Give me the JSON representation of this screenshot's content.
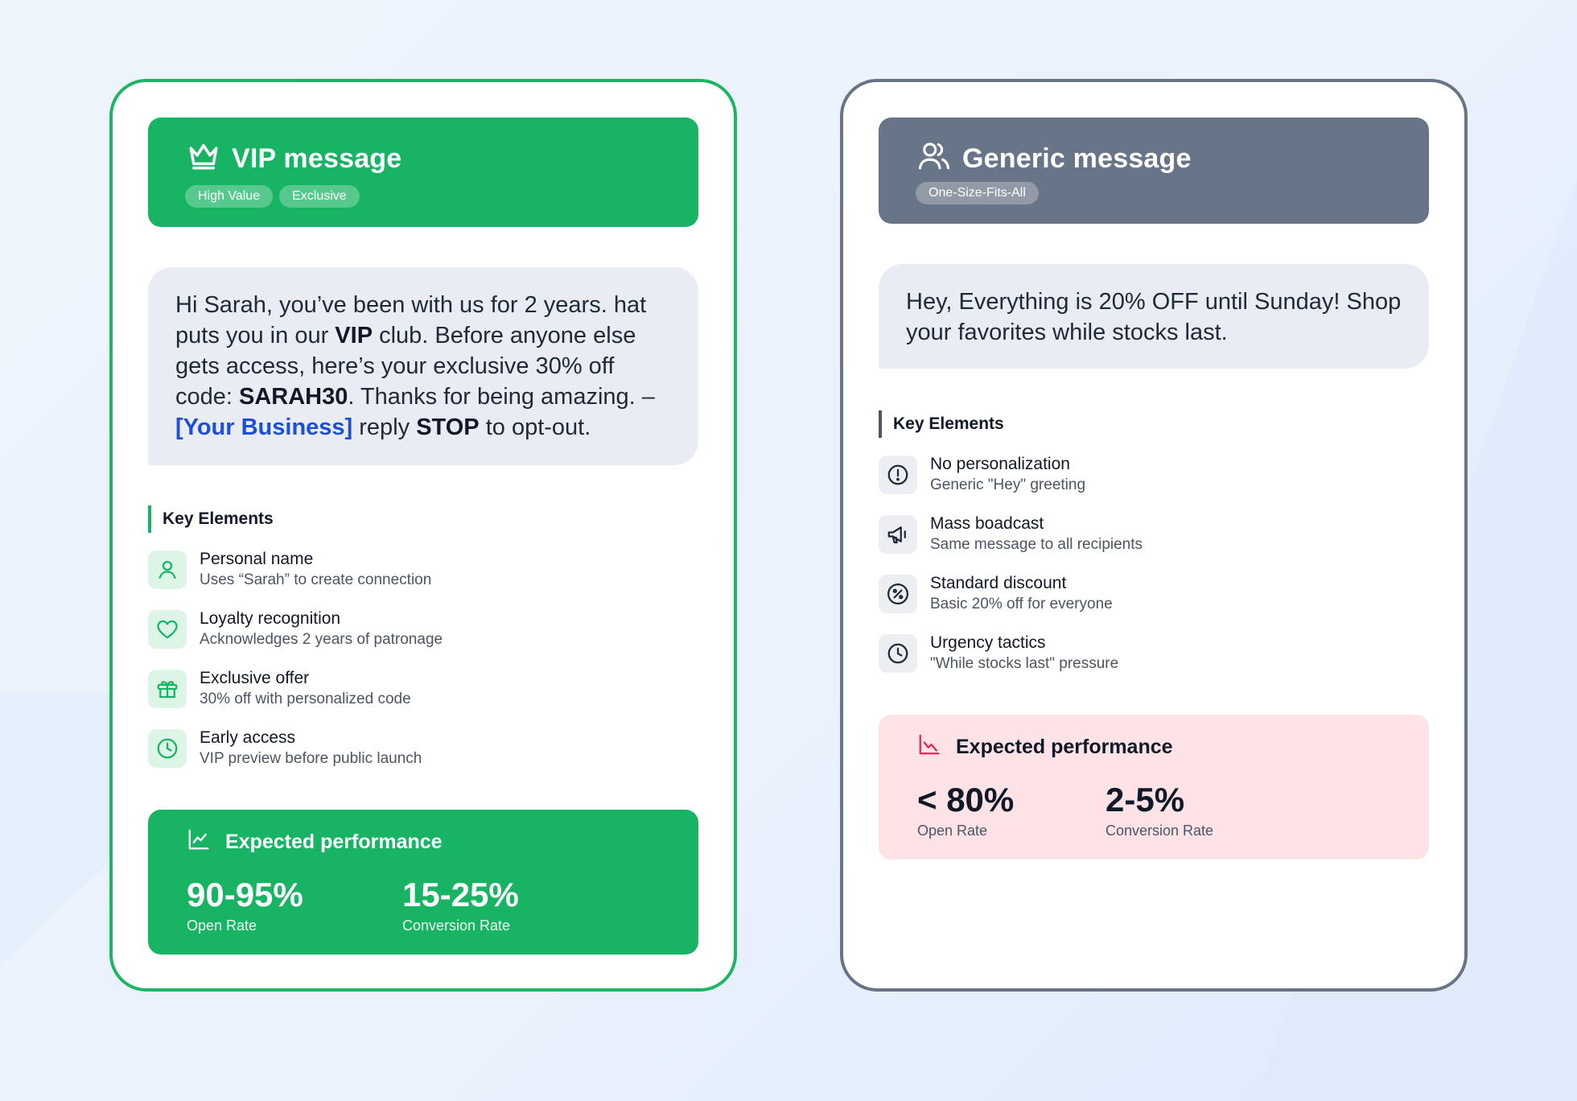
{
  "vip": {
    "title": "VIP message",
    "badges": [
      "High Value",
      "Exclusive"
    ],
    "message": {
      "p1": "Hi Sarah, you’ve been with us for 2 years. hat puts you in our ",
      "vip": "VIP",
      "p2": " club. Before anyone else gets access, here’s your exclusive 30% off code: ",
      "code": "SARAH30",
      "p3": ". Thanks for being amazing. – ",
      "business": "[Your Business]",
      "p4": " reply ",
      "stop": "STOP",
      "p5": " to opt-out."
    },
    "key_heading": "Key Elements",
    "elements": [
      {
        "title": "Personal name",
        "desc": "Uses “Sarah” to create connection",
        "icon": "user-icon"
      },
      {
        "title": "Loyalty recognition",
        "desc": "Acknowledges 2 years of patronage",
        "icon": "heart-icon"
      },
      {
        "title": "Exclusive offer",
        "desc": "30% off with personalized code",
        "icon": "gift-icon"
      },
      {
        "title": "Early access",
        "desc": "VIP preview before public launch",
        "icon": "clock-icon"
      }
    ],
    "performance": {
      "title": "Expected performance",
      "stats": [
        {
          "value": "90-95%",
          "label": "Open Rate"
        },
        {
          "value": "15-25%",
          "label": "Conversion Rate"
        }
      ]
    },
    "accent": "#18b463"
  },
  "generic": {
    "title": "Generic message",
    "badges": [
      "One-Size-Fits-All"
    ],
    "message": "Hey, Everything is 20% OFF until Sunday! Shop your favorites while stocks last.",
    "key_heading": "Key Elements",
    "elements": [
      {
        "title": "No personalization",
        "desc": "Generic \"Hey\" greeting",
        "icon": "alert-circle-icon"
      },
      {
        "title": "Mass boadcast",
        "desc": "Same message to all recipients",
        "icon": "megaphone-icon"
      },
      {
        "title": "Standard discount",
        "desc": "Basic 20% off for everyone",
        "icon": "percent-icon"
      },
      {
        "title": "Urgency tactics",
        "desc": "\"While stocks last\" pressure",
        "icon": "clock-icon"
      }
    ],
    "performance": {
      "title": "Expected performance",
      "stats": [
        {
          "value": "< 80%",
          "label": "Open Rate"
        },
        {
          "value": "2-5%",
          "label": "Conversion Rate"
        }
      ]
    },
    "accent": "#687487"
  }
}
